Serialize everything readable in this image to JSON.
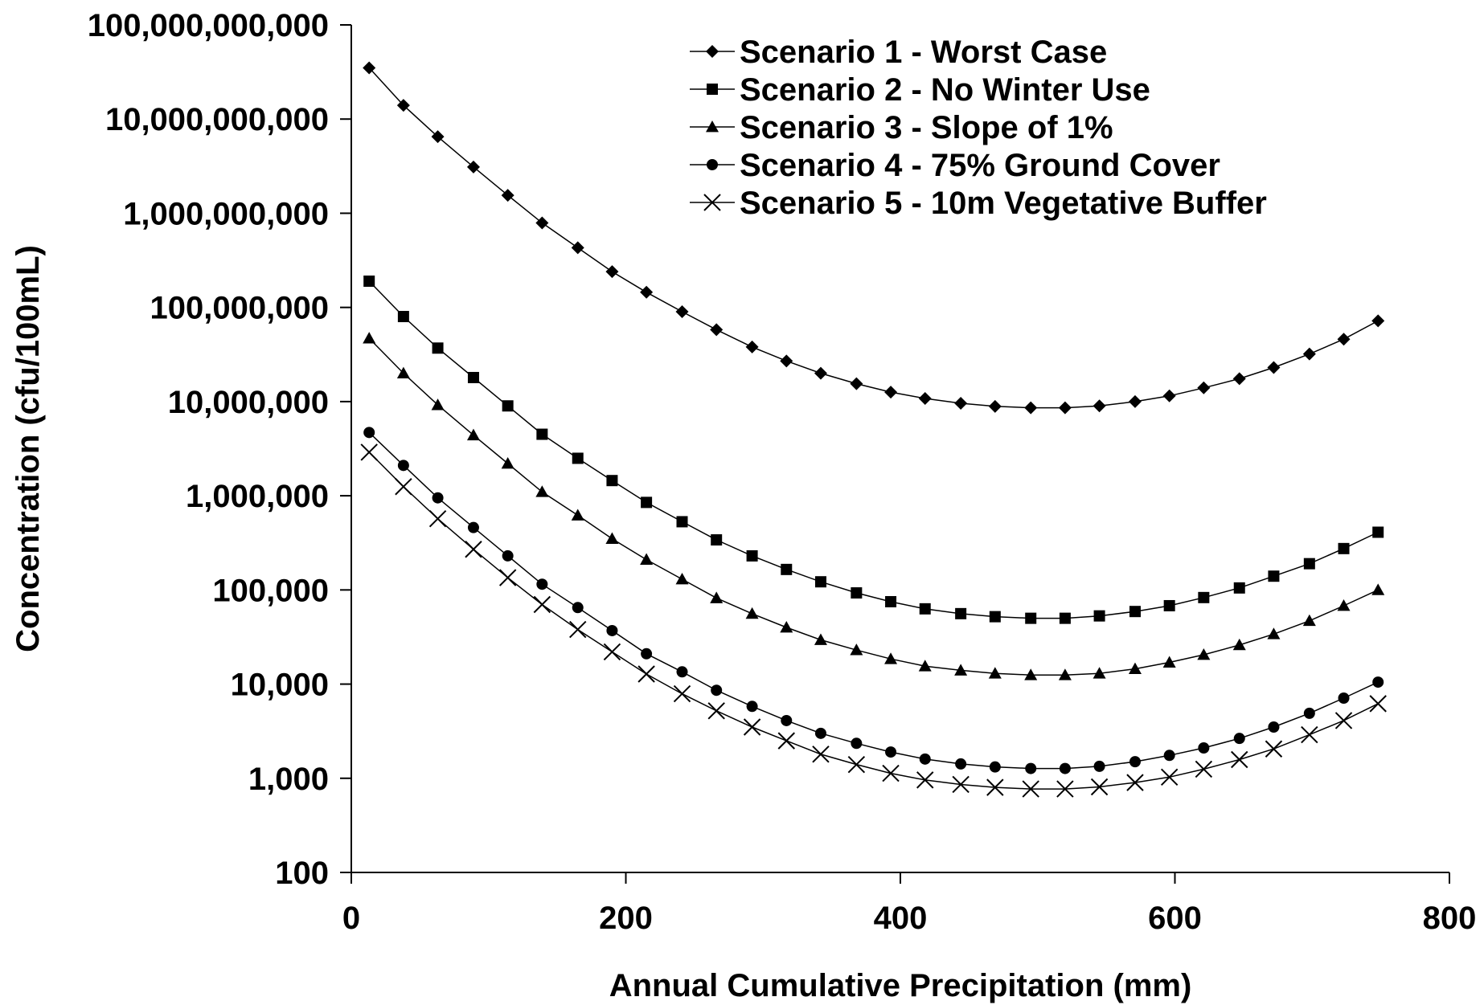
{
  "chart_data": {
    "type": "line",
    "title": "",
    "xlabel": "Annual Cumulative Precipitation (mm)",
    "ylabel": "Concentration (cfu/100mL)",
    "xlim": [
      0,
      800
    ],
    "ylim": [
      100,
      100000000000
    ],
    "y_scale": "log",
    "x_ticks": [
      "0",
      "200",
      "400",
      "600",
      "800"
    ],
    "y_ticks": [
      "100",
      "1,000",
      "10,000",
      "100,000",
      "1,000,000",
      "10,000,000",
      "100,000,000",
      "1,000,000,000",
      "10,000,000,000",
      "100,000,000,000"
    ],
    "grid": false,
    "legend_position": "top-right",
    "x": [
      13,
      38,
      63,
      89,
      114,
      139,
      165,
      190,
      215,
      241,
      266,
      292,
      317,
      342,
      368,
      393,
      418,
      444,
      469,
      495,
      520,
      545,
      571,
      596,
      621,
      647,
      672,
      698,
      723,
      748
    ],
    "series": [
      {
        "name": "Scenario 1 - Worst Case",
        "marker": "diamond",
        "values": [
          35000000000,
          14000000000,
          6500000000,
          3100000000,
          1550000000,
          790000000,
          430000000,
          240000000,
          145000000,
          90000000,
          58000000,
          38000000,
          27000000,
          20000000,
          15500000,
          12600000,
          10800000,
          9600000,
          8900000,
          8600000,
          8600000,
          9000000,
          10000000,
          11500000,
          14000000,
          17500000,
          23000000,
          32000000,
          46000000,
          72000000
        ]
      },
      {
        "name": "Scenario 2 - No Winter Use",
        "marker": "square",
        "values": [
          190000000,
          80000000,
          37000000,
          18000000,
          9000000,
          4500000,
          2500000,
          1450000,
          850000,
          530000,
          340000,
          230000,
          165000,
          122000,
          93000,
          75000,
          63000,
          56000,
          52000,
          50000,
          50000,
          53000,
          59000,
          68000,
          83000,
          105000,
          140000,
          190000,
          275000,
          410000
        ]
      },
      {
        "name": "Scenario 3 - Slope of 1%",
        "marker": "triangle",
        "values": [
          47000000,
          20000000,
          9200000,
          4400000,
          2200000,
          1100000,
          620000,
          350000,
          210000,
          130000,
          82000,
          56000,
          40000,
          29500,
          23000,
          18500,
          15500,
          14000,
          13000,
          12500,
          12500,
          13000,
          14500,
          17000,
          20500,
          26000,
          34000,
          47000,
          68000,
          100000
        ]
      },
      {
        "name": "Scenario 4 - 75% Ground Cover",
        "marker": "circle",
        "values": [
          4700000,
          2100000,
          950000,
          460000,
          230000,
          115000,
          65000,
          37000,
          21000,
          13500,
          8600,
          5800,
          4100,
          3000,
          2350,
          1900,
          1600,
          1420,
          1320,
          1270,
          1270,
          1340,
          1500,
          1750,
          2100,
          2650,
          3500,
          4900,
          7100,
          10500
        ]
      },
      {
        "name": "Scenario 5 - 10m Vegetative Buffer",
        "marker": "x",
        "values": [
          2900000,
          1250000,
          570000,
          270000,
          135000,
          70000,
          38000,
          22000,
          12800,
          7900,
          5200,
          3500,
          2500,
          1800,
          1400,
          1130,
          960,
          860,
          800,
          770,
          770,
          810,
          900,
          1030,
          1250,
          1580,
          2050,
          2900,
          4100,
          6200
        ]
      }
    ]
  }
}
